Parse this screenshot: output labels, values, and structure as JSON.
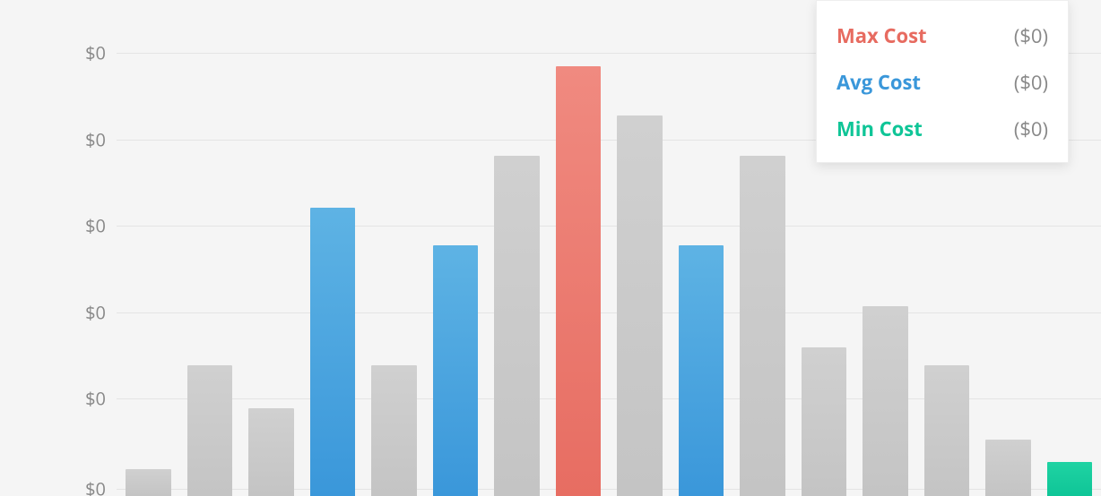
{
  "chart": {
    "type": "bar",
    "background_color": "#f5f5f5",
    "grid_color": "#e4e4e4",
    "axis_label_color": "#888888",
    "axis_label_fontsize": 20,
    "ylim": [
      0,
      100
    ],
    "y_ticks": [
      {
        "pos": 546,
        "label": "$0"
      },
      {
        "pos": 445,
        "label": "$0"
      },
      {
        "pos": 349,
        "label": "$0"
      },
      {
        "pos": 252,
        "label": "$0"
      },
      {
        "pos": 156,
        "label": "$0"
      },
      {
        "pos": 59,
        "label": "$0"
      }
    ],
    "bar_gap": 18,
    "bar_colors": {
      "gray": {
        "top": "#d0d0d0",
        "bottom": "#c4c4c4"
      },
      "blue": {
        "top": "#5eb3e4",
        "bottom": "#3a97da"
      },
      "red": {
        "top": "#f08a80",
        "bottom": "#e76d62"
      },
      "green": {
        "top": "#1fd3a3",
        "bottom": "#0fc597"
      }
    },
    "bars": [
      {
        "value": 30,
        "color": "gray"
      },
      {
        "value": 146,
        "color": "gray"
      },
      {
        "value": 98,
        "color": "gray"
      },
      {
        "value": 322,
        "color": "blue"
      },
      {
        "value": 146,
        "color": "gray"
      },
      {
        "value": 280,
        "color": "blue"
      },
      {
        "value": 380,
        "color": "gray"
      },
      {
        "value": 480,
        "color": "red"
      },
      {
        "value": 425,
        "color": "gray"
      },
      {
        "value": 280,
        "color": "blue"
      },
      {
        "value": 380,
        "color": "gray"
      },
      {
        "value": 166,
        "color": "gray"
      },
      {
        "value": 212,
        "color": "gray"
      },
      {
        "value": 146,
        "color": "gray"
      },
      {
        "value": 63,
        "color": "gray"
      },
      {
        "value": 38,
        "color": "green"
      }
    ]
  },
  "legend": {
    "card_background": "#ffffff",
    "card_border": "#eeeeee",
    "card_shadow": "0 4px 12px rgba(0,0,0,.10)",
    "label_fontsize": 22,
    "value_color": "#888888",
    "items": [
      {
        "label": "Max Cost",
        "value": "($0)",
        "color": "#e76b60"
      },
      {
        "label": "Avg Cost",
        "value": "($0)",
        "color": "#3a97da"
      },
      {
        "label": "Min Cost",
        "value": "($0)",
        "color": "#0fc597"
      }
    ]
  }
}
